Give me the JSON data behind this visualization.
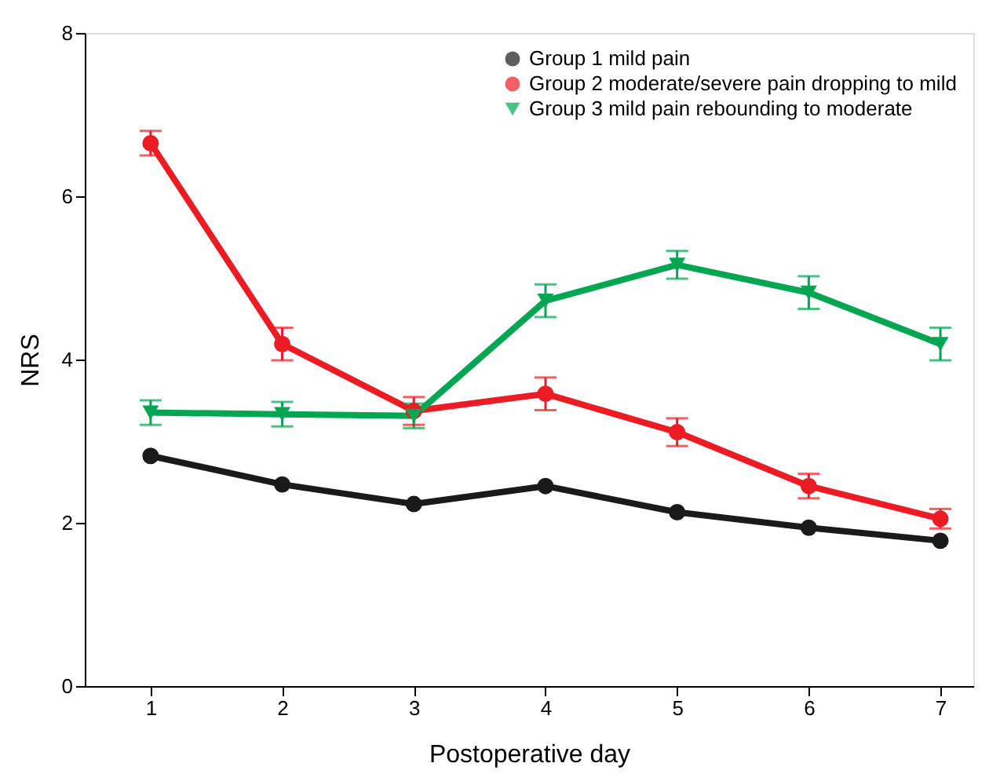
{
  "chart_data": {
    "type": "line",
    "xlabel": "Postoperative day",
    "ylabel": "NRS",
    "x": [
      1,
      2,
      3,
      4,
      5,
      6,
      7
    ],
    "xlim": [
      0.5,
      7.25
    ],
    "xticks": [
      1,
      2,
      3,
      4,
      5,
      6,
      7
    ],
    "ylim": [
      0,
      8
    ],
    "yticks": [
      0,
      2,
      4,
      6,
      8
    ],
    "grid": false,
    "legend": "top right",
    "line_style": "solid",
    "series": [
      {
        "name": "Group 1 mild pain",
        "color": "#1a1a1a",
        "marker": "circle",
        "values": [
          2.82,
          2.47,
          2.23,
          2.45,
          2.13,
          1.94,
          1.78
        ]
      },
      {
        "name": "Group 2 moderate/severe pain dropping to mild",
        "color": "#ec1c24",
        "marker": "circle",
        "values": [
          6.65,
          4.19,
          3.37,
          3.58,
          3.11,
          2.45,
          2.05
        ],
        "errors": [
          0.15,
          0.2,
          0.17,
          0.2,
          0.17,
          0.15,
          0.12
        ]
      },
      {
        "name": "Group 3 mild pain rebounding to moderate",
        "color": "#00a651",
        "marker": "triangle-down",
        "values": [
          3.35,
          3.33,
          3.31,
          4.72,
          5.16,
          4.82,
          4.19
        ],
        "errors": [
          0.15,
          0.15,
          0.15,
          0.2,
          0.17,
          0.2,
          0.2
        ]
      }
    ]
  }
}
